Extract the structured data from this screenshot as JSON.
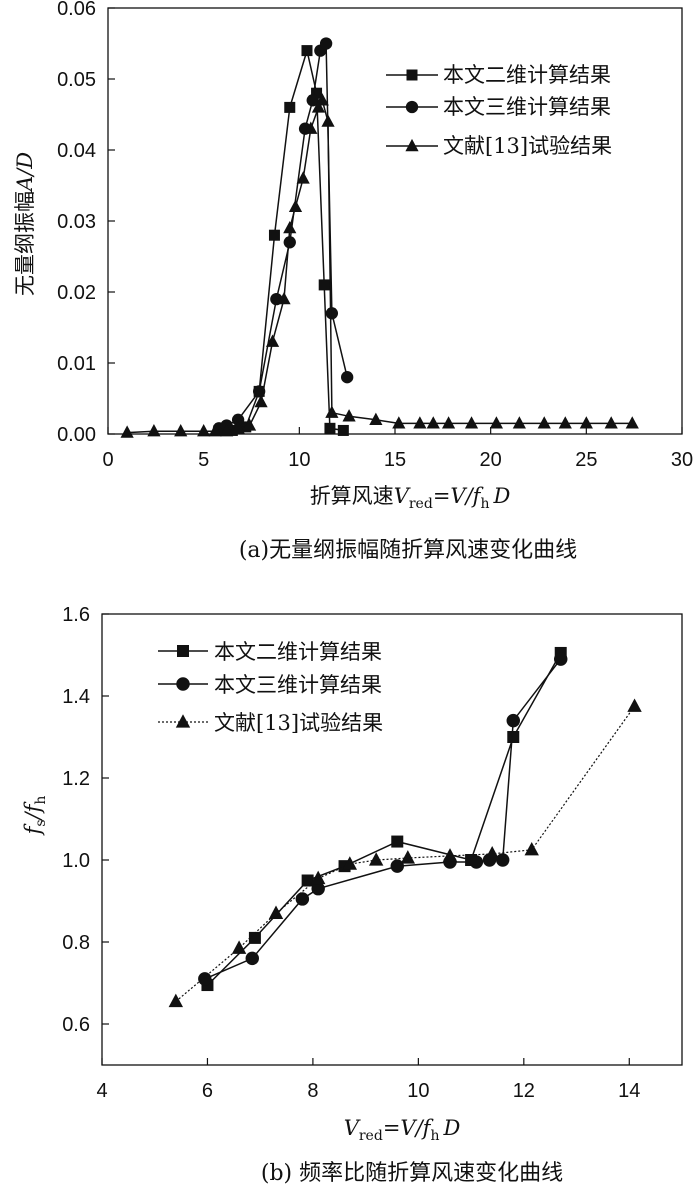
{
  "chart_data": [
    {
      "type": "line",
      "xlim": [
        0,
        30
      ],
      "ylim": [
        0,
        0.06
      ],
      "xticks": [
        "0",
        "5",
        "10",
        "15",
        "20",
        "25",
        "30"
      ],
      "yticks": [
        "0.00",
        "0.01",
        "0.02",
        "0.03",
        "0.04",
        "0.05",
        "0.06"
      ],
      "xlabel_text": "折算风速",
      "xlabel_var": "V",
      "xlabel_sub": "red",
      "xlabel_eq": "=V/",
      "xlabel_f": "f",
      "xlabel_fsub": "h",
      "xlabel_D": "D",
      "ylabel_text": "无量纲振幅",
      "ylabel_var": "A/D",
      "legend_position": "top-right",
      "caption": "(a)无量纲振幅随折算风速变化曲线",
      "series": [
        {
          "name": "本文二维计算结果",
          "marker": "square",
          "dash": "solid",
          "x": [
            5.8,
            6.5,
            7.2,
            7.9,
            8.7,
            9.5,
            10.4,
            10.9,
            11.3,
            11.6,
            12.3
          ],
          "y": [
            0.0005,
            0.0005,
            0.001,
            0.006,
            0.028,
            0.046,
            0.054,
            0.048,
            0.021,
            0.0008,
            0.0005
          ]
        },
        {
          "name": "本文三维计算结果",
          "marker": "circle",
          "dash": "solid",
          "x": [
            5.8,
            6.2,
            6.8,
            7.9,
            8.8,
            9.5,
            10.3,
            10.7,
            11.1,
            11.4,
            11.7,
            12.5
          ],
          "y": [
            0.0008,
            0.0012,
            0.002,
            0.006,
            0.019,
            0.027,
            0.043,
            0.047,
            0.054,
            0.055,
            0.017,
            0.008
          ]
        },
        {
          "name": "文献[13]试验结果",
          "marker": "triangle",
          "dash": "solid",
          "x": [
            1.0,
            2.4,
            3.8,
            5.0,
            5.6,
            6.2,
            6.8,
            7.4,
            8.0,
            8.6,
            9.2,
            9.5,
            9.8,
            10.2,
            10.6,
            11.0,
            11.2,
            11.5,
            11.7,
            12.6,
            14.0,
            15.2,
            16.3,
            17.0,
            17.8,
            19.0,
            20.3,
            21.5,
            22.8,
            23.9,
            25.0,
            26.3,
            27.4
          ],
          "y": [
            0.0002,
            0.0004,
            0.0004,
            0.0004,
            0.0004,
            0.0004,
            0.0008,
            0.0012,
            0.0045,
            0.013,
            0.019,
            0.029,
            0.032,
            0.036,
            0.043,
            0.046,
            0.047,
            0.044,
            0.003,
            0.0025,
            0.002,
            0.0015,
            0.0015,
            0.0015,
            0.0015,
            0.0015,
            0.0015,
            0.0015,
            0.0015,
            0.0015,
            0.0015,
            0.0015,
            0.0015
          ]
        }
      ]
    },
    {
      "type": "line",
      "xlim": [
        4,
        15
      ],
      "ylim": [
        0.5,
        1.6
      ],
      "xticks": [
        "4",
        "6",
        "8",
        "10",
        "12",
        "14"
      ],
      "yticks": [
        "0.6",
        "0.8",
        "1.0",
        "1.2",
        "1.4",
        "1.6"
      ],
      "xlabel_var": "V",
      "xlabel_sub": "red",
      "xlabel_eq": "=V/",
      "xlabel_f": "f",
      "xlabel_fsub": "h",
      "xlabel_D": "D",
      "ylabel_f1": "f",
      "ylabel_s": "s",
      "ylabel_slash": "/",
      "ylabel_f2": "f",
      "ylabel_h": "h",
      "legend_position": "top-left",
      "caption": "(b) 频率比随折算风速变化曲线",
      "series": [
        {
          "name": "本文二维计算结果",
          "marker": "square",
          "dash": "solid",
          "x": [
            6.0,
            6.9,
            7.9,
            8.6,
            9.6,
            11.0,
            11.8,
            12.7
          ],
          "y": [
            0.695,
            0.81,
            0.95,
            0.985,
            1.045,
            1.0,
            1.3,
            1.505
          ]
        },
        {
          "name": "本文三维计算结果",
          "marker": "circle",
          "dash": "solid",
          "x": [
            5.95,
            6.85,
            7.8,
            8.1,
            9.6,
            10.6,
            11.1,
            11.35,
            11.6,
            11.8,
            12.7
          ],
          "y": [
            0.71,
            0.76,
            0.905,
            0.93,
            0.985,
            0.995,
            0.995,
            1.0,
            1.0,
            1.34,
            1.49
          ]
        },
        {
          "name": "文献[13]试验结果",
          "marker": "triangle",
          "dash": "dotted",
          "x": [
            5.4,
            6.6,
            7.3,
            8.1,
            8.7,
            9.2,
            9.8,
            10.6,
            11.4,
            12.15,
            14.1
          ],
          "y": [
            0.655,
            0.785,
            0.87,
            0.955,
            0.99,
            1.0,
            1.005,
            1.01,
            1.015,
            1.025,
            1.375
          ]
        }
      ]
    }
  ]
}
